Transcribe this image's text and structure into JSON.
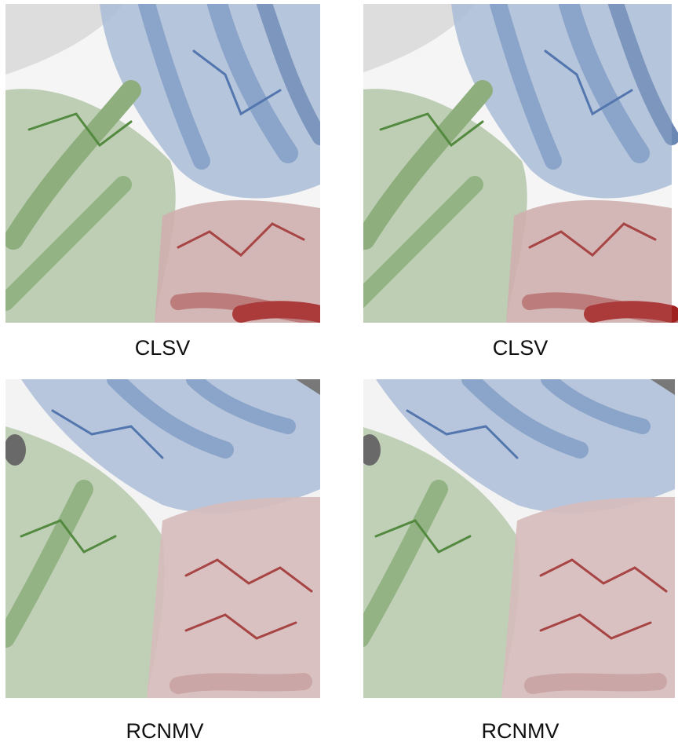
{
  "panels": [
    {
      "label": "CLSV"
    },
    {
      "label": "CLSV"
    },
    {
      "label": "RCNMV"
    },
    {
      "label": "RCNMV"
    }
  ]
}
